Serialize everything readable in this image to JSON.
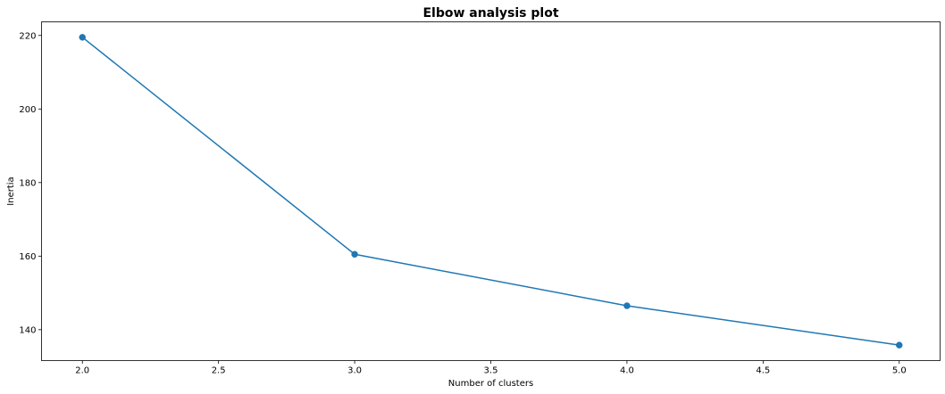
{
  "chart_data": {
    "type": "line",
    "title": "Elbow analysis plot",
    "xlabel": "Number of clusters",
    "ylabel": "Inertia",
    "x": [
      2,
      3,
      4,
      5
    ],
    "series": [
      {
        "values": [
          219.5,
          160.5,
          146.5,
          135.8
        ],
        "color": "#1f77b4",
        "marker": "circle"
      }
    ],
    "xlim": [
      1.85,
      5.15
    ],
    "ylim": [
      131.6,
      223.7
    ],
    "xticks": [
      2.0,
      2.5,
      3.0,
      3.5,
      4.0,
      4.5,
      5.0
    ],
    "xtick_labels": [
      "2.0",
      "2.5",
      "3.0",
      "3.5",
      "4.0",
      "4.5",
      "5.0"
    ],
    "yticks": [
      140,
      160,
      180,
      200,
      220
    ],
    "ytick_labels": [
      "140",
      "160",
      "180",
      "200",
      "220"
    ],
    "grid": false,
    "legend": false
  }
}
